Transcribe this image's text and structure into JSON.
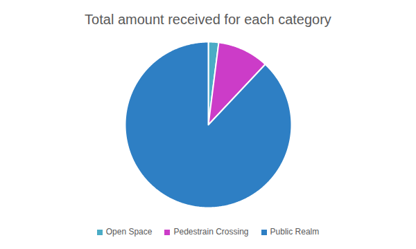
{
  "chart_data": {
    "type": "pie",
    "title": "Total amount received for each category",
    "categories": [
      "Open Space",
      "Pedestrain Crossing",
      "Public Realm"
    ],
    "values": [
      2,
      10,
      88
    ],
    "colors": [
      "#4bacc6",
      "#cc3cc8",
      "#2e7fc4"
    ],
    "legend": "bottom"
  }
}
